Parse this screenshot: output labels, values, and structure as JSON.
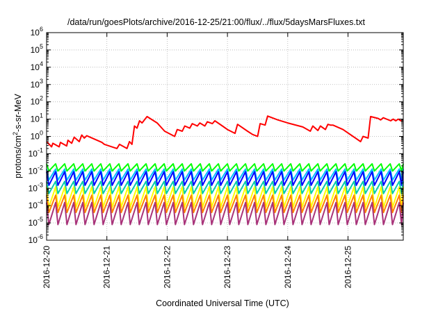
{
  "chart_data": {
    "type": "line",
    "title": "/data/run/goesPlots/archive/2016-12-25/21:00/flux/../flux/5daysMarsFluxes.txt",
    "xlabel": "Coordinated Universal Time (UTC)",
    "ylabel": {
      "base": "protons/cm",
      "sup": "2",
      "rest": "-s-sr-MeV"
    },
    "yscale": "log",
    "ylim": [
      1e-06,
      1000000.0
    ],
    "yticks": [
      {
        "value": 1e-06,
        "base": "10",
        "exp": "-6"
      },
      {
        "value": 1e-05,
        "base": "10",
        "exp": "-5"
      },
      {
        "value": 0.0001,
        "base": "10",
        "exp": "-4"
      },
      {
        "value": 0.001,
        "base": "10",
        "exp": "-3"
      },
      {
        "value": 0.01,
        "base": "10",
        "exp": "-2"
      },
      {
        "value": 0.1,
        "base": "10",
        "exp": "-1"
      },
      {
        "value": 1,
        "base": "10",
        "exp": "0"
      },
      {
        "value": 10.0,
        "base": "10",
        "exp": "1"
      },
      {
        "value": 100.0,
        "base": "10",
        "exp": "2"
      },
      {
        "value": 1000.0,
        "base": "10",
        "exp": "3"
      },
      {
        "value": 10000.0,
        "base": "10",
        "exp": "4"
      },
      {
        "value": 100000.0,
        "base": "10",
        "exp": "5"
      },
      {
        "value": 1000000.0,
        "base": "10",
        "exp": "6"
      }
    ],
    "xlim": [
      "2016-12-20T00:00",
      "2016-12-25T22:00"
    ],
    "xticks": [
      "2016-12-20",
      "2016-12-21",
      "2016-12-22",
      "2016-12-23",
      "2016-12-24",
      "2016-12-25"
    ],
    "grid": true,
    "legend": "none",
    "series": [
      {
        "color": "#ff0000",
        "style": "saw",
        "points": [
          [
            "2016-12-20T00:00",
            0.5
          ],
          [
            "2016-12-20T02:00",
            0.25
          ],
          [
            "2016-12-20T02:30",
            0.4
          ],
          [
            "2016-12-20T05:00",
            0.25
          ],
          [
            "2016-12-20T05:30",
            0.45
          ],
          [
            "2016-12-20T08:00",
            0.28
          ],
          [
            "2016-12-20T08:30",
            0.6
          ],
          [
            "2016-12-20T10:00",
            0.4
          ],
          [
            "2016-12-20T11:00",
            0.9
          ],
          [
            "2016-12-20T13:00",
            0.5
          ],
          [
            "2016-12-20T14:00",
            1.2
          ],
          [
            "2016-12-20T15:00",
            0.8
          ],
          [
            "2016-12-20T16:00",
            1.1
          ],
          [
            "2016-12-20T22:00",
            0.45
          ],
          [
            "2016-12-20T23:00",
            0.35
          ],
          [
            "2016-12-21T04:00",
            0.2
          ],
          [
            "2016-12-21T05:00",
            0.35
          ],
          [
            "2016-12-21T08:00",
            0.2
          ],
          [
            "2016-12-21T09:00",
            0.5
          ],
          [
            "2016-12-21T10:00",
            0.35
          ],
          [
            "2016-12-21T11:00",
            4.0
          ],
          [
            "2016-12-21T12:00",
            3.0
          ],
          [
            "2016-12-21T13:00",
            8.0
          ],
          [
            "2016-12-21T14:00",
            6.0
          ],
          [
            "2016-12-21T16:00",
            14.0
          ],
          [
            "2016-12-21T20:00",
            6.0
          ],
          [
            "2016-12-21T23:00",
            2.0
          ],
          [
            "2016-12-22T03:00",
            1.0
          ],
          [
            "2016-12-22T04:00",
            2.5
          ],
          [
            "2016-12-22T06:00",
            2.0
          ],
          [
            "2016-12-22T07:00",
            4.0
          ],
          [
            "2016-12-22T09:00",
            3.0
          ],
          [
            "2016-12-22T10:00",
            5.5
          ],
          [
            "2016-12-22T12:00",
            4.0
          ],
          [
            "2016-12-22T13:00",
            6.0
          ],
          [
            "2016-12-22T15:00",
            4.0
          ],
          [
            "2016-12-22T16:00",
            7.0
          ],
          [
            "2016-12-22T18:00",
            5.5
          ],
          [
            "2016-12-22T19:00",
            8.0
          ],
          [
            "2016-12-22T22:00",
            4.0
          ],
          [
            "2016-12-23T00:00",
            2.5
          ],
          [
            "2016-12-23T03:00",
            1.5
          ],
          [
            "2016-12-23T04:00",
            5.0
          ],
          [
            "2016-12-23T08:00",
            2.0
          ],
          [
            "2016-12-23T10:00",
            1.3
          ],
          [
            "2016-12-23T12:00",
            1.0
          ],
          [
            "2016-12-23T13:00",
            5.5
          ],
          [
            "2016-12-23T15:00",
            4.5
          ],
          [
            "2016-12-23T16:00",
            15.0
          ],
          [
            "2016-12-23T20:00",
            9.0
          ],
          [
            "2016-12-24T00:00",
            6.0
          ],
          [
            "2016-12-24T06:00",
            3.5
          ],
          [
            "2016-12-24T09:00",
            2.0
          ],
          [
            "2016-12-24T10:00",
            4.0
          ],
          [
            "2016-12-24T12:00",
            2.2
          ],
          [
            "2016-12-24T13:00",
            4.0
          ],
          [
            "2016-12-24T15:00",
            2.5
          ],
          [
            "2016-12-24T16:00",
            5.0
          ],
          [
            "2016-12-24T17:00",
            4.5
          ],
          [
            "2016-12-24T18:00",
            4.5
          ],
          [
            "2016-12-24T22:00",
            2.5
          ],
          [
            "2016-12-25T02:00",
            1.0
          ],
          [
            "2016-12-25T05:00",
            0.5
          ],
          [
            "2016-12-25T06:00",
            1.0
          ],
          [
            "2016-12-25T08:00",
            0.8
          ],
          [
            "2016-12-25T09:00",
            14.0
          ],
          [
            "2016-12-25T12:00",
            11.0
          ],
          [
            "2016-12-25T13:00",
            9.0
          ],
          [
            "2016-12-25T14:00",
            12.0
          ],
          [
            "2016-12-25T17:00",
            8.0
          ],
          [
            "2016-12-25T18:00",
            10.0
          ],
          [
            "2016-12-25T19:00",
            8.0
          ],
          [
            "2016-12-25T20:00",
            10.0
          ],
          [
            "2016-12-25T21:00",
            8.0
          ],
          [
            "2016-12-25T22:00",
            9.0
          ]
        ]
      },
      {
        "color": "#00ff00",
        "style": "sawtooth",
        "period_hours": 3.6,
        "high": 0.026,
        "low": 0.01
      },
      {
        "color": "#00c0ff",
        "style": "sawtooth",
        "period_hours": 3.6,
        "high": 0.013,
        "low": 0.003
      },
      {
        "color": "#0000ff",
        "style": "sawtooth",
        "period_hours": 3.6,
        "high": 0.009,
        "low": 0.0015
      },
      {
        "color": "#00ccaa",
        "style": "sawtooth",
        "period_hours": 3.6,
        "high": 0.0025,
        "low": 0.0005
      },
      {
        "color": "#ffff00",
        "style": "sawtooth",
        "period_hours": 3.6,
        "high": 0.0012,
        "low": 8e-05
      },
      {
        "color": "#ff8000",
        "style": "sawtooth",
        "period_hours": 3.6,
        "high": 0.0004,
        "low": 4e-05
      },
      {
        "color": "#a83279",
        "style": "sawtooth",
        "period_hours": 3.6,
        "high": 0.00015,
        "low": 8e-06
      }
    ]
  }
}
